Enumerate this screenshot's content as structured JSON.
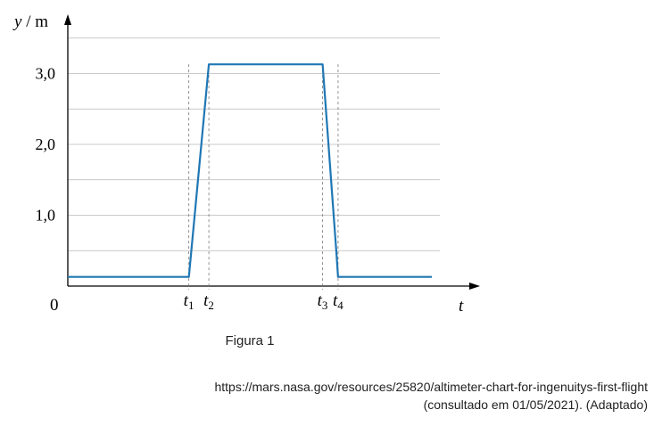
{
  "chart_data": {
    "type": "line",
    "ylabel_var": "y",
    "ylabel_unit": "m",
    "xlabel": "t",
    "origin_label": "0",
    "ylim": [
      0,
      3.5
    ],
    "yticks": [
      {
        "value": 1.0,
        "label": "1,0"
      },
      {
        "value": 2.0,
        "label": "2,0"
      },
      {
        "value": 3.0,
        "label": "3,0"
      }
    ],
    "xmarks": [
      {
        "name": "t1",
        "base": "t",
        "sub": "1",
        "x": 13.3
      },
      {
        "name": "t2",
        "base": "t",
        "sub": "2",
        "x": 15.5
      },
      {
        "name": "t3",
        "base": "t",
        "sub": "3",
        "x": 28.0
      },
      {
        "name": "t4",
        "base": "t",
        "sub": "4",
        "x": 29.7
      }
    ],
    "series": [
      {
        "color": "#1f77b4",
        "x": [
          0,
          13.3,
          15.5,
          28.0,
          29.5,
          29.7,
          40
        ],
        "y": [
          0.13,
          0.13,
          3.13,
          3.13,
          0.5,
          0.13,
          0.13
        ]
      }
    ],
    "grid": true
  },
  "caption": "Figura 1",
  "source_line1": "https://mars.nasa.gov/resources/25820/altimeter-chart-for-ingenuitys-first-flight",
  "source_line2": "(consultado em 01/05/2021). (Adaptado)"
}
